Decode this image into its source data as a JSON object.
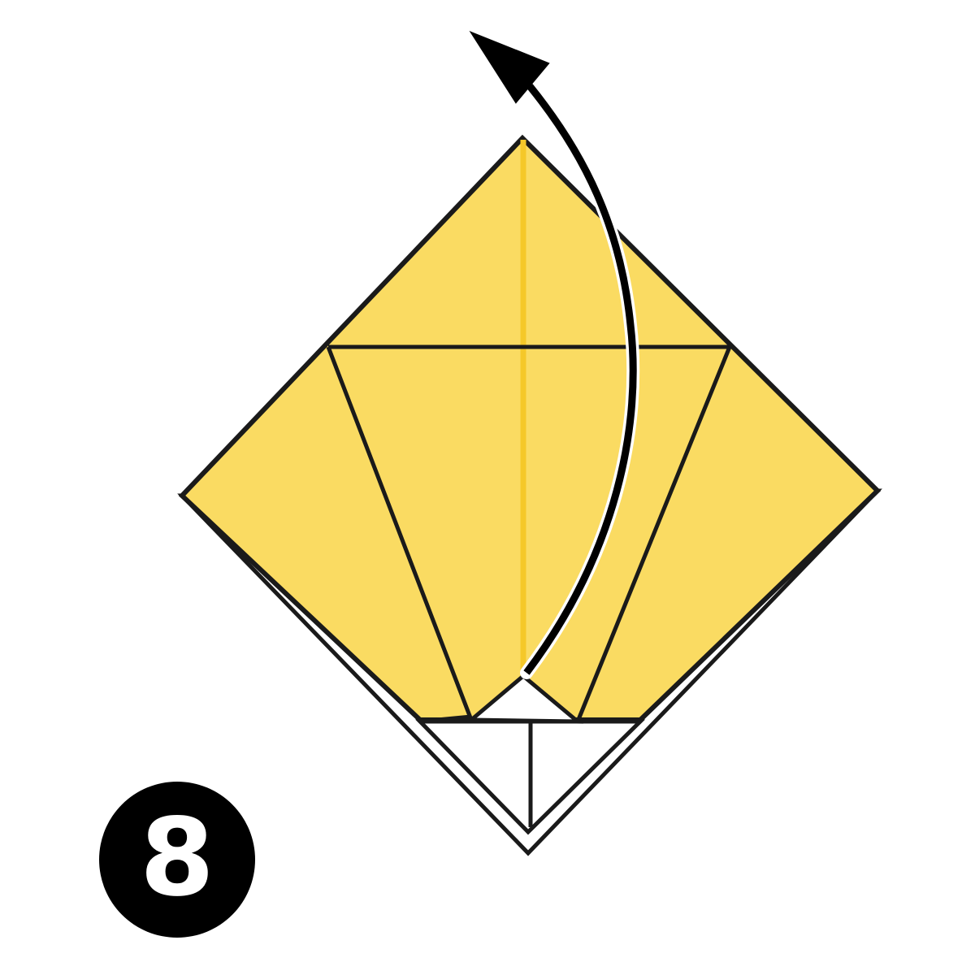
{
  "step": {
    "number": "8"
  },
  "colors": {
    "paper": "#FADB62",
    "paper_reverse": "#FFFFFF",
    "center_crease": "#F5C829",
    "outline": "#1A1A1A",
    "arrow": "#000000",
    "badge": "#000000",
    "badge_text": "#FFFFFF"
  },
  "icons": {
    "arrow": "curved-fold-arrow-up"
  }
}
